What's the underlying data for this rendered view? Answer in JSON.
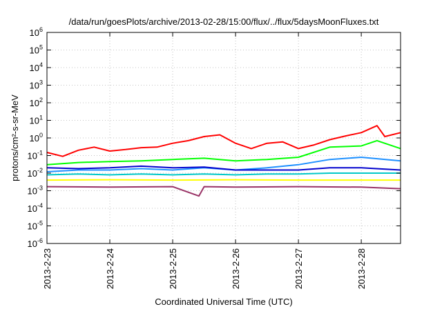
{
  "chart_data": {
    "type": "line",
    "title": "/data/run/goesPlots/archive/2013-02-28/15:00/flux/../flux/5daysMoonFluxes.txt",
    "xlabel": "Coordinated Universal Time (UTC)",
    "ylabel": "protons/cm²-s-sr-MeV",
    "y_scale": "log",
    "ylim": [
      1e-06,
      1000000.0
    ],
    "y_ticks": [
      {
        "value": 1e-06,
        "base": "10",
        "exp": "-6"
      },
      {
        "value": 1e-05,
        "base": "10",
        "exp": "-5"
      },
      {
        "value": 0.0001,
        "base": "10",
        "exp": "-4"
      },
      {
        "value": 0.001,
        "base": "10",
        "exp": "-3"
      },
      {
        "value": 0.01,
        "base": "10",
        "exp": "-2"
      },
      {
        "value": 0.1,
        "base": "10",
        "exp": "-1"
      },
      {
        "value": 1,
        "base": "10",
        "exp": "0"
      },
      {
        "value": 10,
        "base": "10",
        "exp": "1"
      },
      {
        "value": 100,
        "base": "10",
        "exp": "2"
      },
      {
        "value": 1000,
        "base": "10",
        "exp": "3"
      },
      {
        "value": 10000,
        "base": "10",
        "exp": "4"
      },
      {
        "value": 100000,
        "base": "10",
        "exp": "5"
      },
      {
        "value": 1000000,
        "base": "10",
        "exp": "6"
      }
    ],
    "xlim": [
      "2013-02-23",
      "2013-02-28 15:00"
    ],
    "x_ticks": [
      "2013-2-23",
      "2013-2-24",
      "2013-2-25",
      "2013-2-26",
      "2013-2-27",
      "2013-2-28"
    ],
    "grid": true,
    "legend": "none",
    "series": [
      {
        "color": "#ff0000",
        "values": [
          {
            "x": "2013-02-23 00:00",
            "y": 0.15
          },
          {
            "x": "2013-02-23 06:00",
            "y": 0.09
          },
          {
            "x": "2013-02-23 12:00",
            "y": 0.2
          },
          {
            "x": "2013-02-23 18:00",
            "y": 0.3
          },
          {
            "x": "2013-02-24 00:00",
            "y": 0.18
          },
          {
            "x": "2013-02-24 06:00",
            "y": 0.22
          },
          {
            "x": "2013-02-24 12:00",
            "y": 0.28
          },
          {
            "x": "2013-02-24 18:00",
            "y": 0.3
          },
          {
            "x": "2013-02-25 00:00",
            "y": 0.5
          },
          {
            "x": "2013-02-25 06:00",
            "y": 0.7
          },
          {
            "x": "2013-02-25 12:00",
            "y": 1.2
          },
          {
            "x": "2013-02-25 18:00",
            "y": 1.5
          },
          {
            "x": "2013-02-26 00:00",
            "y": 0.5
          },
          {
            "x": "2013-02-26 06:00",
            "y": 0.25
          },
          {
            "x": "2013-02-26 12:00",
            "y": 0.5
          },
          {
            "x": "2013-02-26 18:00",
            "y": 0.6
          },
          {
            "x": "2013-02-27 00:00",
            "y": 0.25
          },
          {
            "x": "2013-02-27 06:00",
            "y": 0.4
          },
          {
            "x": "2013-02-27 12:00",
            "y": 0.8
          },
          {
            "x": "2013-02-27 18:00",
            "y": 1.3
          },
          {
            "x": "2013-02-28 00:00",
            "y": 2.0
          },
          {
            "x": "2013-02-28 06:00",
            "y": 5.0
          },
          {
            "x": "2013-02-28 09:00",
            "y": 1.2
          },
          {
            "x": "2013-02-28 15:00",
            "y": 2.0
          }
        ]
      },
      {
        "color": "#00ff00",
        "values": [
          {
            "x": "2013-02-23 00:00",
            "y": 0.03
          },
          {
            "x": "2013-02-23 12:00",
            "y": 0.04
          },
          {
            "x": "2013-02-24 00:00",
            "y": 0.045
          },
          {
            "x": "2013-02-24 12:00",
            "y": 0.05
          },
          {
            "x": "2013-02-25 00:00",
            "y": 0.06
          },
          {
            "x": "2013-02-25 12:00",
            "y": 0.07
          },
          {
            "x": "2013-02-26 00:00",
            "y": 0.05
          },
          {
            "x": "2013-02-26 12:00",
            "y": 0.06
          },
          {
            "x": "2013-02-27 00:00",
            "y": 0.08
          },
          {
            "x": "2013-02-27 12:00",
            "y": 0.3
          },
          {
            "x": "2013-02-28 00:00",
            "y": 0.35
          },
          {
            "x": "2013-02-28 06:00",
            "y": 0.7
          },
          {
            "x": "2013-02-28 15:00",
            "y": 0.25
          }
        ]
      },
      {
        "color": "#1e90ff",
        "values": [
          {
            "x": "2013-02-23 00:00",
            "y": 0.012
          },
          {
            "x": "2013-02-23 12:00",
            "y": 0.015
          },
          {
            "x": "2013-02-24 00:00",
            "y": 0.015
          },
          {
            "x": "2013-02-24 12:00",
            "y": 0.018
          },
          {
            "x": "2013-02-25 00:00",
            "y": 0.015
          },
          {
            "x": "2013-02-25 12:00",
            "y": 0.02
          },
          {
            "x": "2013-02-26 00:00",
            "y": 0.015
          },
          {
            "x": "2013-02-26 12:00",
            "y": 0.02
          },
          {
            "x": "2013-02-27 00:00",
            "y": 0.03
          },
          {
            "x": "2013-02-27 12:00",
            "y": 0.06
          },
          {
            "x": "2013-02-28 00:00",
            "y": 0.08
          },
          {
            "x": "2013-02-28 15:00",
            "y": 0.05
          }
        ]
      },
      {
        "color": "#0000cd",
        "values": [
          {
            "x": "2013-02-23 00:00",
            "y": 0.02
          },
          {
            "x": "2013-02-23 12:00",
            "y": 0.018
          },
          {
            "x": "2013-02-24 00:00",
            "y": 0.02
          },
          {
            "x": "2013-02-24 12:00",
            "y": 0.025
          },
          {
            "x": "2013-02-25 00:00",
            "y": 0.02
          },
          {
            "x": "2013-02-25 12:00",
            "y": 0.022
          },
          {
            "x": "2013-02-26 00:00",
            "y": 0.015
          },
          {
            "x": "2013-02-26 12:00",
            "y": 0.015
          },
          {
            "x": "2013-02-27 00:00",
            "y": 0.015
          },
          {
            "x": "2013-02-27 12:00",
            "y": 0.02
          },
          {
            "x": "2013-02-28 00:00",
            "y": 0.02
          },
          {
            "x": "2013-02-28 15:00",
            "y": 0.015
          }
        ]
      },
      {
        "color": "#00c8c8",
        "values": [
          {
            "x": "2013-02-23 00:00",
            "y": 0.008
          },
          {
            "x": "2013-02-23 12:00",
            "y": 0.009
          },
          {
            "x": "2013-02-24 00:00",
            "y": 0.008
          },
          {
            "x": "2013-02-24 12:00",
            "y": 0.009
          },
          {
            "x": "2013-02-25 00:00",
            "y": 0.008
          },
          {
            "x": "2013-02-25 12:00",
            "y": 0.009
          },
          {
            "x": "2013-02-26 00:00",
            "y": 0.008
          },
          {
            "x": "2013-02-26 12:00",
            "y": 0.009
          },
          {
            "x": "2013-02-27 00:00",
            "y": 0.009
          },
          {
            "x": "2013-02-27 12:00",
            "y": 0.01
          },
          {
            "x": "2013-02-28 00:00",
            "y": 0.01
          },
          {
            "x": "2013-02-28 15:00",
            "y": 0.01
          }
        ]
      },
      {
        "color": "#ffff00",
        "values": [
          {
            "x": "2013-02-23 00:00",
            "y": 0.004
          },
          {
            "x": "2013-02-24 00:00",
            "y": 0.0042
          },
          {
            "x": "2013-02-25 00:00",
            "y": 0.004
          },
          {
            "x": "2013-02-26 00:00",
            "y": 0.0042
          },
          {
            "x": "2013-02-27 00:00",
            "y": 0.004
          },
          {
            "x": "2013-02-28 00:00",
            "y": 0.004
          },
          {
            "x": "2013-02-28 15:00",
            "y": 0.004
          }
        ]
      },
      {
        "color": "#993366",
        "values": [
          {
            "x": "2013-02-23 00:00",
            "y": 0.0017
          },
          {
            "x": "2013-02-24 00:00",
            "y": 0.0016
          },
          {
            "x": "2013-02-25 00:00",
            "y": 0.0017
          },
          {
            "x": "2013-02-25 10:00",
            "y": 0.0005
          },
          {
            "x": "2013-02-25 12:00",
            "y": 0.0017
          },
          {
            "x": "2013-02-26 00:00",
            "y": 0.0016
          },
          {
            "x": "2013-02-27 00:00",
            "y": 0.0017
          },
          {
            "x": "2013-02-28 00:00",
            "y": 0.0016
          },
          {
            "x": "2013-02-28 15:00",
            "y": 0.0013
          }
        ]
      }
    ]
  }
}
